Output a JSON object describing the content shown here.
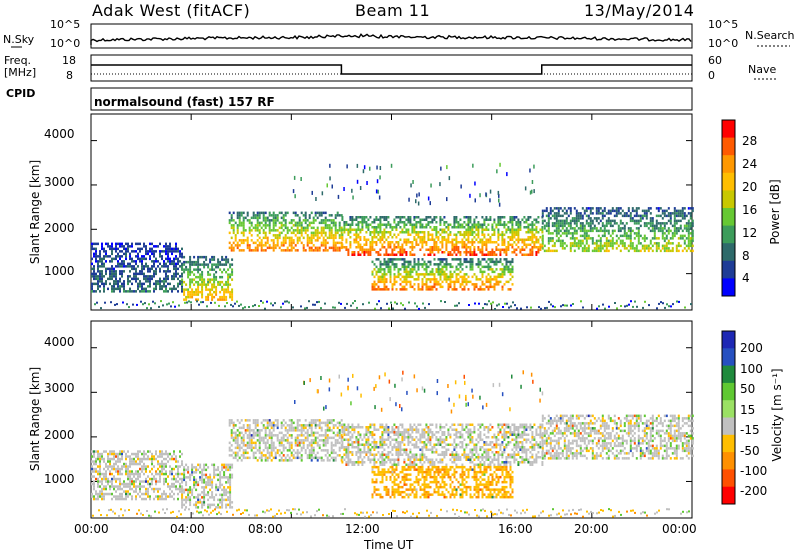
{
  "header": {
    "site": "Adak West (fitACF)",
    "beam": "Beam 11",
    "date": "13/May/2014"
  },
  "summary_panel": {
    "nsky_label": "N.Sky",
    "nsky_ticks": [
      "10^5",
      "10^0"
    ],
    "nsearch_label": "N.Search",
    "nsearch_ticks": [
      "10^5",
      "10^0"
    ],
    "freq_label": "Freq.",
    "freq_unit": "[MHz]",
    "freq_ticks": [
      "18",
      "8"
    ],
    "nave_label": "Nave",
    "nave_ticks": [
      "60",
      "0"
    ],
    "cpid_label": "CPID",
    "cpid_text": "normalsound (fast) 157 RF"
  },
  "power_colorbar": {
    "label": "Power [dB]",
    "ticks": [
      "28",
      "24",
      "20",
      "16",
      "12",
      "8",
      "4"
    ],
    "colors": [
      "#ff0000",
      "#ff5a00",
      "#ff9800",
      "#ffbe00",
      "#c8c800",
      "#66c833",
      "#3c9c5a",
      "#2e6a6a",
      "#1e3c96",
      "#0000ff"
    ]
  },
  "velocity_colorbar": {
    "label": "Velocity [m s⁻¹]",
    "ticks": [
      "200",
      "100",
      "50",
      "15",
      "-15",
      "-50",
      "-100",
      "-200"
    ],
    "colors": [
      "#1e28b4",
      "#2650c0",
      "#1f8a3c",
      "#5fc832",
      "#9be164",
      "#c0c0c0",
      "#ffbe00",
      "#ff9000",
      "#ff5000",
      "#ff0000"
    ]
  },
  "axes": {
    "ylabel": "Slant Range [km]",
    "xlabel": "Time UT",
    "y_ticks": [
      "4000",
      "3000",
      "2000",
      "1000"
    ],
    "x_ticks": [
      "00:00",
      "04:00",
      "08:00",
      "12:00",
      "16:00",
      "20:00",
      "00:00"
    ]
  },
  "chart_data": [
    {
      "type": "heatmap",
      "title": "",
      "quantity": "Power",
      "xlabel": "Time UT",
      "ylabel": "Slant Range [km]",
      "x_range_hours": [
        0,
        24
      ],
      "ylim": [
        180,
        4600
      ],
      "colorbar_label": "Power [dB]",
      "colorbar_range": [
        0,
        30
      ],
      "scatter_regions": [
        {
          "time_start_h": 0.0,
          "time_end_h": 3.6,
          "range_km": [
            600,
            1700
          ],
          "level_db": 6
        },
        {
          "time_start_h": 3.6,
          "time_end_h": 5.6,
          "range_km": [
            400,
            1400
          ],
          "level_db": 18
        },
        {
          "time_start_h": 5.5,
          "time_end_h": 10.0,
          "range_km": [
            1500,
            2400
          ],
          "level_db": 22
        },
        {
          "time_start_h": 10.0,
          "time_end_h": 18.0,
          "range_km": [
            1400,
            2300
          ],
          "level_db": 24
        },
        {
          "time_start_h": 11.2,
          "time_end_h": 16.8,
          "range_km": [
            650,
            1350
          ],
          "level_db": 22
        },
        {
          "time_start_h": 18.0,
          "time_end_h": 24.0,
          "range_km": [
            1500,
            2500
          ],
          "level_db": 14
        }
      ]
    },
    {
      "type": "heatmap",
      "title": "",
      "quantity": "Velocity",
      "xlabel": "Time UT",
      "ylabel": "Slant Range [km]",
      "x_range_hours": [
        0,
        24
      ],
      "ylim": [
        180,
        4600
      ],
      "colorbar_label": "Velocity [m s⁻¹]",
      "colorbar_range": [
        -200,
        200
      ],
      "scatter_regions": [
        {
          "time_start_h": 0.0,
          "time_end_h": 3.6,
          "range_km": [
            600,
            1700
          ],
          "velocity_ms": 0
        },
        {
          "time_start_h": 3.6,
          "time_end_h": 5.6,
          "range_km": [
            400,
            1400
          ],
          "velocity_ms": 0
        },
        {
          "time_start_h": 5.5,
          "time_end_h": 10.0,
          "range_km": [
            1500,
            2400
          ],
          "velocity_ms": 0
        },
        {
          "time_start_h": 10.0,
          "time_end_h": 18.0,
          "range_km": [
            1400,
            2300
          ],
          "velocity_ms": 0
        },
        {
          "time_start_h": 11.2,
          "time_end_h": 16.8,
          "range_km": [
            650,
            1350
          ],
          "velocity_ms": -40
        },
        {
          "time_start_h": 18.0,
          "time_end_h": 24.0,
          "range_km": [
            1500,
            2500
          ],
          "velocity_ms": 0
        }
      ]
    }
  ]
}
